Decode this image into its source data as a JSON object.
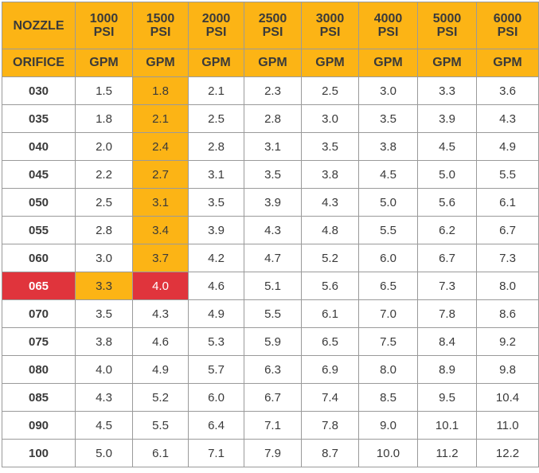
{
  "chart_data": {
    "type": "table",
    "header_row1": [
      "NOZZLE",
      "1000\nPSI",
      "1500\nPSI",
      "2000\nPSI",
      "2500\nPSI",
      "3000\nPSI",
      "4000\nPSI",
      "5000\nPSI",
      "6000\nPSI"
    ],
    "header_row2": [
      "ORIFICE",
      "GPM",
      "GPM",
      "GPM",
      "GPM",
      "GPM",
      "GPM",
      "GPM",
      "GPM"
    ],
    "rows": [
      {
        "orifice": "030",
        "values": [
          "1.5",
          "1.8",
          "2.1",
          "2.3",
          "2.5",
          "3.0",
          "3.3",
          "3.6"
        ]
      },
      {
        "orifice": "035",
        "values": [
          "1.8",
          "2.1",
          "2.5",
          "2.8",
          "3.0",
          "3.5",
          "3.9",
          "4.3"
        ]
      },
      {
        "orifice": "040",
        "values": [
          "2.0",
          "2.4",
          "2.8",
          "3.1",
          "3.5",
          "3.8",
          "4.5",
          "4.9"
        ]
      },
      {
        "orifice": "045",
        "values": [
          "2.2",
          "2.7",
          "3.1",
          "3.5",
          "3.8",
          "4.5",
          "5.0",
          "5.5"
        ]
      },
      {
        "orifice": "050",
        "values": [
          "2.5",
          "3.1",
          "3.5",
          "3.9",
          "4.3",
          "5.0",
          "5.6",
          "6.1"
        ]
      },
      {
        "orifice": "055",
        "values": [
          "2.8",
          "3.4",
          "3.9",
          "4.3",
          "4.8",
          "5.5",
          "6.2",
          "6.7"
        ]
      },
      {
        "orifice": "060",
        "values": [
          "3.0",
          "3.7",
          "4.2",
          "4.7",
          "5.2",
          "6.0",
          "6.7",
          "7.3"
        ]
      },
      {
        "orifice": "065",
        "values": [
          "3.3",
          "4.0",
          "4.6",
          "5.1",
          "5.6",
          "6.5",
          "7.3",
          "8.0"
        ]
      },
      {
        "orifice": "070",
        "values": [
          "3.5",
          "4.3",
          "4.9",
          "5.5",
          "6.1",
          "7.0",
          "7.8",
          "8.6"
        ]
      },
      {
        "orifice": "075",
        "values": [
          "3.8",
          "4.6",
          "5.3",
          "5.9",
          "6.5",
          "7.5",
          "8.4",
          "9.2"
        ]
      },
      {
        "orifice": "080",
        "values": [
          "4.0",
          "4.9",
          "5.7",
          "6.3",
          "6.9",
          "8.0",
          "8.9",
          "9.8"
        ]
      },
      {
        "orifice": "085",
        "values": [
          "4.3",
          "5.2",
          "6.0",
          "6.7",
          "7.4",
          "8.5",
          "9.5",
          "10.4"
        ]
      },
      {
        "orifice": "090",
        "values": [
          "4.5",
          "5.5",
          "6.4",
          "7.1",
          "7.8",
          "9.0",
          "10.1",
          "11.0"
        ]
      },
      {
        "orifice": "100",
        "values": [
          "5.0",
          "6.1",
          "7.1",
          "7.9",
          "8.7",
          "10.0",
          "11.2",
          "12.2"
        ]
      }
    ],
    "highlight": {
      "selected_row": "065",
      "selected_column": "1500\nPSI",
      "path_color": "#fcb415",
      "target_color": "#e0343c"
    }
  }
}
